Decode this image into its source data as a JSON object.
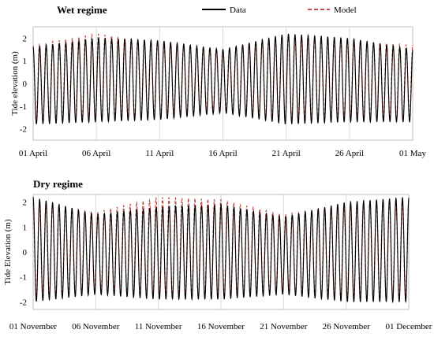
{
  "chart_data": [
    {
      "type": "line",
      "title": "Wet regime",
      "xlabel": "",
      "ylabel": "Tide elevation (m)",
      "ylim": [
        -2.5,
        2.5
      ],
      "yticks": [
        -2,
        -1,
        0,
        1,
        2
      ],
      "xlim_days": [
        0,
        30
      ],
      "x_tick_labels": [
        "01 April",
        "06 April",
        "11 April",
        "16 April",
        "21 April",
        "26 April",
        "01 May"
      ],
      "legend": "top",
      "grid": "vertical",
      "series": [
        {
          "name": "Data",
          "style": "solid",
          "color": "#000000",
          "x": [
            "01 April",
            "06 April",
            "11 April",
            "16 April",
            "21 April",
            "26 April",
            "01 May"
          ],
          "high": [
            1.6,
            2.0,
            1.9,
            1.5,
            2.2,
            2.0,
            1.5
          ],
          "low": [
            -1.8,
            -1.7,
            -1.6,
            -1.3,
            -1.8,
            -1.7,
            -1.7
          ]
        },
        {
          "name": "Model",
          "style": "dashed",
          "color": "#c0504d",
          "x": [
            "01 April",
            "06 April",
            "11 April",
            "16 April",
            "21 April",
            "26 April",
            "01 May"
          ],
          "high": [
            1.7,
            2.2,
            1.8,
            1.5,
            2.1,
            1.9,
            1.7
          ],
          "low": [
            -1.7,
            -1.6,
            -1.4,
            -1.2,
            -1.6,
            -1.5,
            -1.6
          ]
        }
      ]
    },
    {
      "type": "line",
      "title": "Dry regime",
      "xlabel": "",
      "ylabel": "Tide Elevation (m)",
      "ylim": [
        -2.3,
        2.3
      ],
      "yticks": [
        -2,
        -1,
        0,
        1,
        2
      ],
      "xlim_days": [
        0,
        30
      ],
      "x_tick_labels": [
        "01 November",
        "06 November",
        "11 November",
        "16 November",
        "21 November",
        "26 November",
        "01 December"
      ],
      "legend": "none",
      "grid": "vertical",
      "series": [
        {
          "name": "Data",
          "style": "solid",
          "color": "#000000",
          "x": [
            "01 November",
            "06 November",
            "11 November",
            "16 November",
            "21 November",
            "26 November",
            "01 December"
          ],
          "high": [
            2.2,
            1.5,
            1.8,
            1.9,
            1.4,
            2.0,
            2.2
          ],
          "low": [
            -2.0,
            -1.7,
            -1.9,
            -1.9,
            -1.7,
            -2.0,
            -2.0
          ]
        },
        {
          "name": "Model",
          "style": "dashed",
          "color": "#c0504d",
          "x": [
            "01 November",
            "06 November",
            "11 November",
            "16 November",
            "21 November",
            "26 November",
            "01 December"
          ],
          "high": [
            2.0,
            1.6,
            2.2,
            2.1,
            1.5,
            1.9,
            2.1
          ],
          "low": [
            -1.9,
            -1.6,
            -1.8,
            -1.8,
            -1.6,
            -1.9,
            -1.9
          ]
        }
      ]
    }
  ]
}
